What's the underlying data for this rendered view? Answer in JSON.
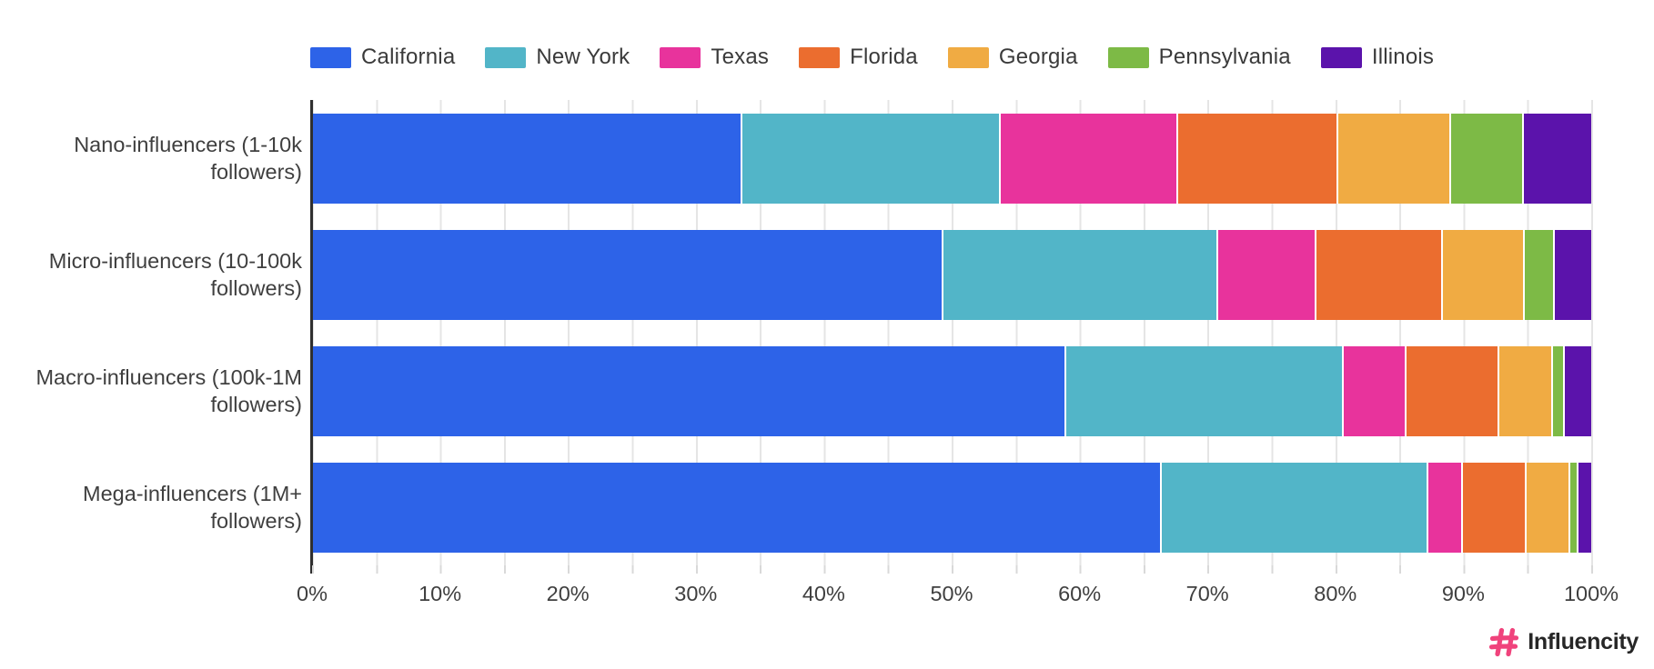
{
  "chart_data": {
    "type": "bar",
    "orientation": "horizontal",
    "stacked": true,
    "unit": "percent",
    "title": "",
    "xlabel": "",
    "ylabel": "",
    "xlim": [
      0,
      100
    ],
    "x_ticks": [
      "0%",
      "10%",
      "20%",
      "30%",
      "40%",
      "50%",
      "60%",
      "70%",
      "80%",
      "90%",
      "100%"
    ],
    "grid": "minor-vertical-every-5pct",
    "legend_position": "top",
    "categories": [
      "Nano-influencers (1-10k followers)",
      "Micro-influencers (10-100k followers)",
      "Macro-influencers (100k-1M followers)",
      "Mega-influencers (1M+ followers)"
    ],
    "series": [
      {
        "name": "California",
        "color": "#2D63E8",
        "values": [
          33.5,
          49.2,
          58.8,
          66.3
        ]
      },
      {
        "name": "New York",
        "color": "#52B5C8",
        "values": [
          20.2,
          21.5,
          21.7,
          20.8
        ]
      },
      {
        "name": "Texas",
        "color": "#E8339C",
        "values": [
          13.9,
          7.7,
          4.9,
          2.7
        ]
      },
      {
        "name": "Florida",
        "color": "#EB6D2F",
        "values": [
          12.5,
          9.9,
          7.3,
          5.0
        ]
      },
      {
        "name": "Georgia",
        "color": "#F0AB43",
        "values": [
          8.8,
          6.4,
          4.2,
          3.4
        ]
      },
      {
        "name": "Pennsylvania",
        "color": "#7DBA46",
        "values": [
          5.7,
          2.3,
          0.9,
          0.7
        ]
      },
      {
        "name": "Illinois",
        "color": "#5B13AB",
        "values": [
          5.4,
          3.0,
          2.2,
          1.1
        ]
      }
    ]
  },
  "branding": {
    "logo_text": "Influencity",
    "logo_icon": "hashtag-icon",
    "logo_color": "#F0437C",
    "logo_text_color": "#262626"
  },
  "colors": {
    "background": "#FFFFFF",
    "grid": "#E5E5E5",
    "axis": "#2F2F2F",
    "tick": "#D9D9D9",
    "label_text": "#3F3F3F",
    "legend_text": "#3A3A3A"
  }
}
